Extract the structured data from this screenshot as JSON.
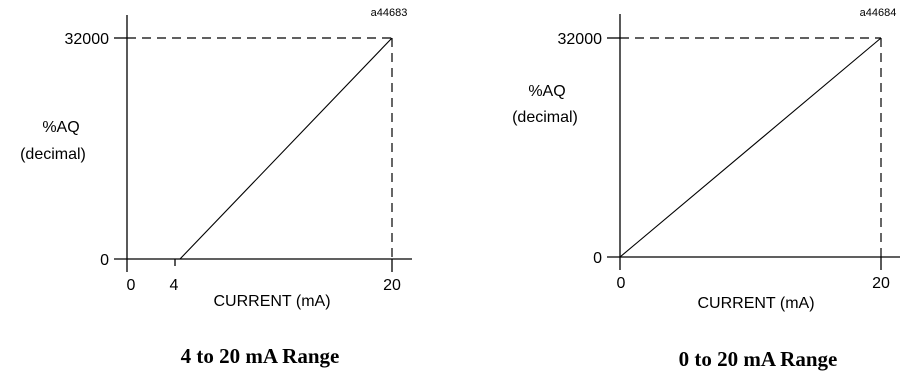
{
  "chart_data": [
    {
      "type": "line",
      "figure_id": "a44683",
      "caption": "4 to 20 mA Range",
      "xlabel": "CURRENT (mA)",
      "ylabel_line1": "%AQ",
      "ylabel_line2": "(decimal)",
      "x_ticks": [
        "0",
        "4",
        "20"
      ],
      "y_ticks": [
        "0",
        "32000"
      ],
      "xlim": [
        0,
        20
      ],
      "ylim": [
        0,
        32000
      ],
      "series": [
        {
          "x": [
            4,
            20
          ],
          "y": [
            0,
            32000
          ]
        }
      ],
      "grid": false
    },
    {
      "type": "line",
      "figure_id": "a44684",
      "caption": "0 to 20 mA Range",
      "xlabel": "CURRENT (mA)",
      "ylabel_line1": "%AQ",
      "ylabel_line2": "(decimal)",
      "x_ticks": [
        "0",
        "20"
      ],
      "y_ticks": [
        "0",
        "32000"
      ],
      "xlim": [
        0,
        20
      ],
      "ylim": [
        0,
        32000
      ],
      "series": [
        {
          "x": [
            0,
            20
          ],
          "y": [
            0,
            32000
          ]
        }
      ],
      "grid": false
    }
  ]
}
